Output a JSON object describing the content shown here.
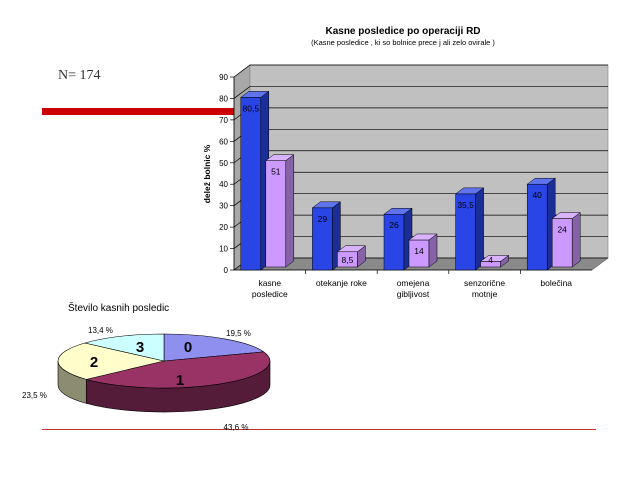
{
  "slide": {
    "sample_size": "N= 174"
  },
  "colors": {
    "bar_series_1": "#2a45e6",
    "bar_series_2": "#cc99ff",
    "plot_wall": "#c0c0c0",
    "accent_line": "#cc0000",
    "pie_0": "#8f8fef",
    "pie_1": "#993366",
    "pie_2": "#ffffcc",
    "pie_3": "#ccffff"
  },
  "chart_data": [
    {
      "type": "bar",
      "title": "Kasne posledice po operaciji RD",
      "subtitle": "(Kasne posledice , ki so bolnice prece j ali zelo ovirale )",
      "xlabel": "",
      "ylabel": "delež bolnic %",
      "ylim": [
        0,
        90
      ],
      "yticks": [
        "0",
        "10",
        "20",
        "30",
        "40",
        "50",
        "60",
        "70",
        "80",
        "90"
      ],
      "grid": true,
      "three_d": true,
      "categories": [
        [
          "kasne",
          "posledice"
        ],
        [
          "otekanje roke"
        ],
        [
          "omejena",
          "gibljivost"
        ],
        [
          "senzorične",
          "motnje"
        ],
        [
          "bolečina"
        ]
      ],
      "series": [
        {
          "values": [
            80.5,
            29,
            26,
            35.5,
            40
          ],
          "labels": [
            "80,5",
            "29",
            "26",
            "35,5",
            "40"
          ]
        },
        {
          "values": [
            51,
            8.5,
            14,
            4,
            24
          ],
          "labels": [
            "51",
            "8,5",
            "14",
            "4",
            "24"
          ]
        }
      ]
    },
    {
      "type": "pie",
      "title": "Število kasnih posledic",
      "three_d": true,
      "slices": [
        {
          "label": "0",
          "value": 19.5,
          "percent_label": "19,5 %"
        },
        {
          "label": "1",
          "value": 43.6,
          "percent_label": "43,6 %"
        },
        {
          "label": "2",
          "value": 23.5,
          "percent_label": "23,5 %"
        },
        {
          "label": "3",
          "value": 13.4,
          "percent_label": "13,4 %"
        }
      ]
    }
  ]
}
